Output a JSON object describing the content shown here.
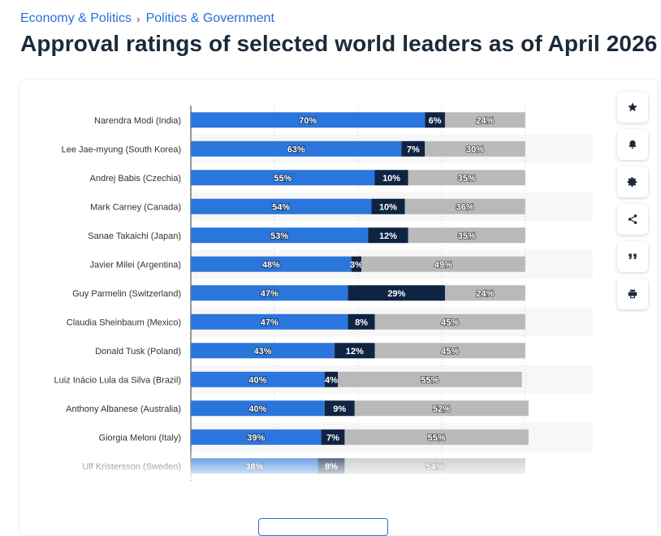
{
  "breadcrumb": {
    "item1": "Economy & Politics",
    "separator": "›",
    "item2": "Politics & Government"
  },
  "title": "Approval ratings of selected world leaders as of April 2026",
  "colors": {
    "approve": "#2a76dd",
    "undecided": "#0f2342",
    "disapprove": "#b9b9b9",
    "link": "#2a6fd6"
  },
  "toolbar": [
    "star-icon",
    "bell-icon",
    "gear-icon",
    "share-icon",
    "quote-icon",
    "print-icon"
  ],
  "chart_data": {
    "type": "bar",
    "orientation": "horizontal",
    "stacked": true,
    "xlim": [
      0,
      100
    ],
    "grid": true,
    "categories": [
      "Narendra Modi (India)",
      "Lee Jae-myung (South Korea)",
      "Andrej Babis (Czechia)",
      "Mark Carney (Canada)",
      "Sanae Takaichi (Japan)",
      "Javier Milei (Argentina)",
      "Guy Parmelin (Switzerland)",
      "Claudia Sheinbaum (Mexico)",
      "Donald Tusk (Poland)",
      "Luiz Inácio Lula da Silva (Brazil)",
      "Anthony Albanese (Australia)",
      "Giorgia Meloni (Italy)",
      "Ulf Kristersson (Sweden)"
    ],
    "series": [
      {
        "values": [
          70,
          63,
          55,
          54,
          53,
          48,
          47,
          47,
          43,
          40,
          40,
          39,
          38
        ]
      },
      {
        "values": [
          6,
          7,
          10,
          10,
          12,
          3,
          29,
          8,
          12,
          4,
          9,
          7,
          8
        ]
      },
      {
        "values": [
          24,
          30,
          35,
          36,
          35,
          49,
          24,
          45,
          45,
          55,
          52,
          55,
          54
        ]
      }
    ],
    "value_suffix": "%"
  }
}
